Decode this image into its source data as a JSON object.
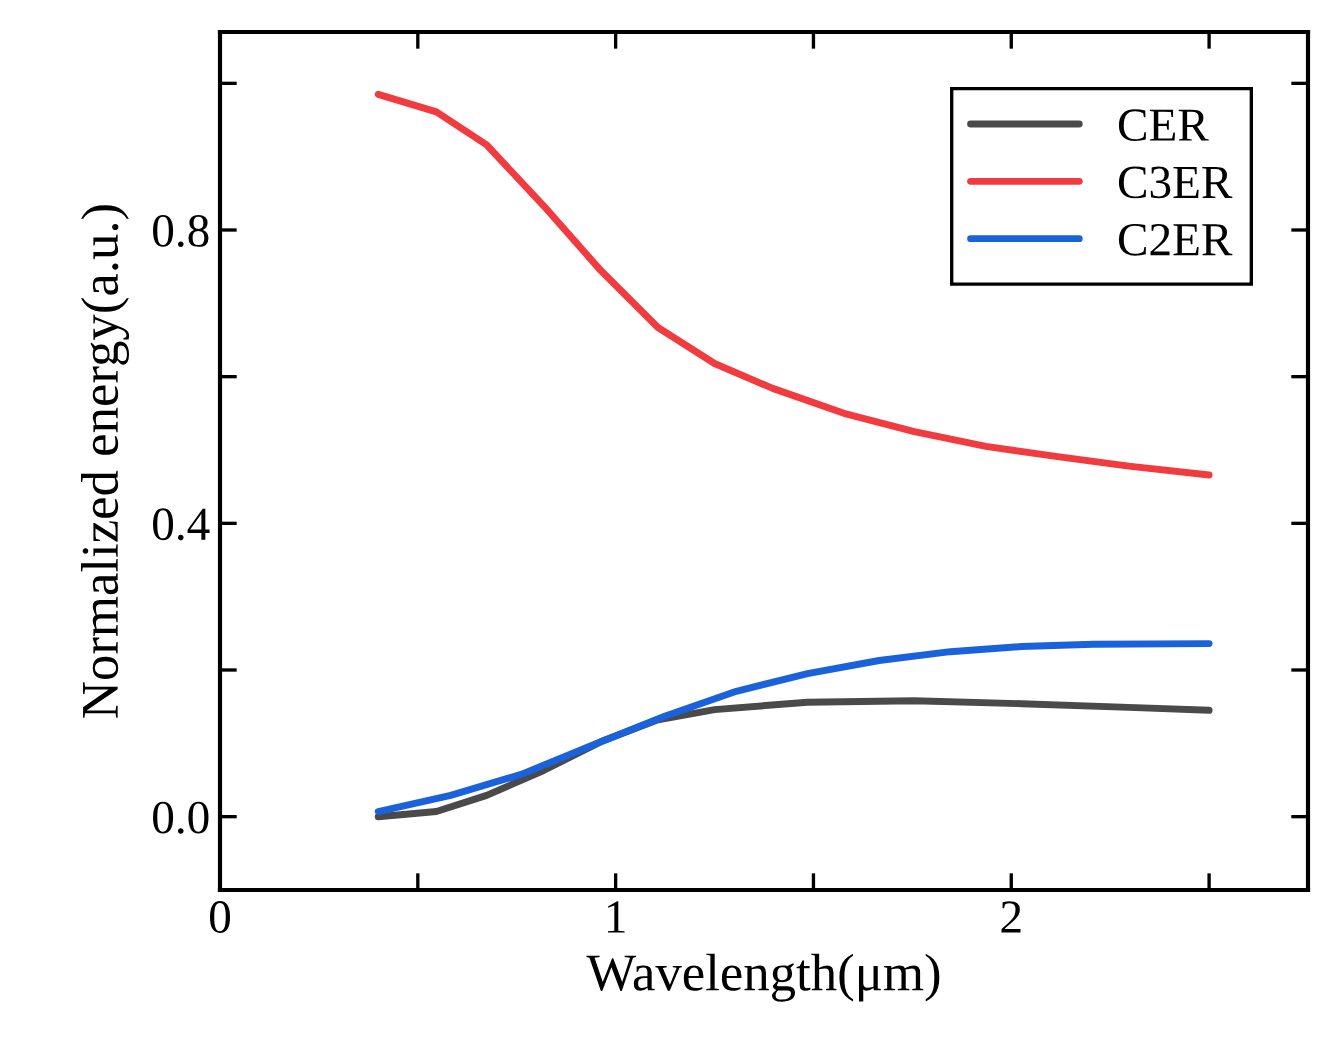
{
  "chart_data": {
    "type": "line",
    "xlabel": "Wavelength(μm)",
    "ylabel": "Normalized energy(a.u.)",
    "xlim": [
      0,
      2.75
    ],
    "ylim": [
      -0.1,
      1.07
    ],
    "xticks": [
      0,
      {
        "value": 0.5,
        "label": null
      },
      1,
      {
        "value": 1.5,
        "label": null
      },
      2,
      {
        "value": 2.5,
        "label": null
      }
    ],
    "yticks": [
      "0.0",
      {
        "value": 0.2,
        "label": null
      },
      0.4,
      {
        "value": 0.6,
        "label": null
      },
      0.8,
      {
        "value": 1.0,
        "label": null
      }
    ],
    "grid": false,
    "legend": "top right",
    "marker": "none",
    "line_style": "solid",
    "series": [
      {
        "name": "CER",
        "color": "#4a4a4a",
        "x": [
          0.4,
          0.547,
          0.674,
          0.818,
          0.962,
          1.107,
          1.25,
          1.485,
          1.755,
          2.026,
          2.297,
          2.5
        ],
        "values": [
          0.0,
          0.007,
          0.029,
          0.063,
          0.102,
          0.132,
          0.146,
          0.156,
          0.158,
          0.154,
          0.149,
          0.145
        ]
      },
      {
        "name": "C3ER",
        "color": "#f23b3f",
        "x": [
          0.4,
          0.547,
          0.674,
          0.818,
          0.962,
          1.107,
          1.25,
          1.397,
          1.577,
          1.755,
          1.936,
          2.117,
          2.297,
          2.5
        ],
        "values": [
          0.985,
          0.961,
          0.916,
          0.833,
          0.745,
          0.667,
          0.618,
          0.584,
          0.55,
          0.525,
          0.505,
          0.491,
          0.478,
          0.466
        ]
      },
      {
        "name": "C2ER",
        "color": "#1a62dc",
        "x": [
          0.4,
          0.583,
          0.763,
          0.944,
          1.124,
          1.305,
          1.485,
          1.666,
          1.846,
          2.026,
          2.207,
          2.5
        ],
        "values": [
          0.007,
          0.029,
          0.058,
          0.098,
          0.137,
          0.171,
          0.195,
          0.213,
          0.225,
          0.232,
          0.235,
          0.236
        ]
      }
    ]
  }
}
